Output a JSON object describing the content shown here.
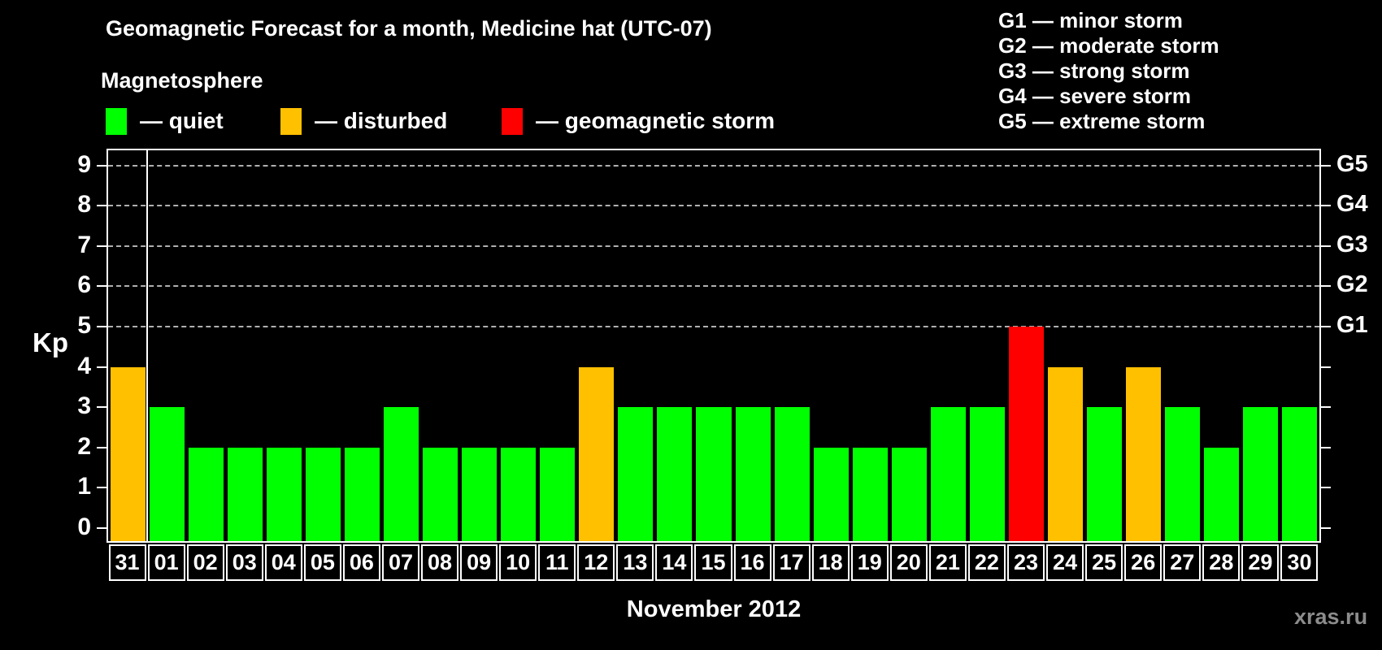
{
  "title": "Geomagnetic Forecast for a month, Medicine hat (UTC-07)",
  "subtitle": "Magnetosphere",
  "legend": {
    "items": [
      {
        "name": "quiet",
        "label": "— quiet",
        "color": "#00ff00"
      },
      {
        "name": "disturbed",
        "label": "— disturbed",
        "color": "#ffc000"
      },
      {
        "name": "storm",
        "label": "— geomagnetic storm",
        "color": "#ff0000"
      }
    ]
  },
  "storm_scale_legend": [
    "G1 — minor storm",
    "G2 — moderate storm",
    "G3 — strong storm",
    "G4 — severe storm",
    "G5 — extreme storm"
  ],
  "watermark": "xras.ru",
  "chart_data": {
    "type": "bar",
    "title": "Geomagnetic Forecast for a month, Medicine hat (UTC-07)",
    "ylabel": "Kp",
    "xlabel": "November 2012",
    "ylim": [
      0,
      9.4
    ],
    "yticks": [
      0,
      1,
      2,
      3,
      4,
      5,
      6,
      7,
      8,
      9
    ],
    "gridline_levels": [
      5,
      6,
      7,
      8,
      9
    ],
    "grid": "dashed horizontal lines at storm levels only",
    "legend_position": "top-left",
    "right_axis": [
      {
        "kp": 5,
        "label": "G1"
      },
      {
        "kp": 6,
        "label": "G2"
      },
      {
        "kp": 7,
        "label": "G3"
      },
      {
        "kp": 8,
        "label": "G4"
      },
      {
        "kp": 9,
        "label": "G5"
      }
    ],
    "month_separator_after_index": 0,
    "categories": [
      "31",
      "01",
      "02",
      "03",
      "04",
      "05",
      "06",
      "07",
      "08",
      "09",
      "10",
      "11",
      "12",
      "13",
      "14",
      "15",
      "16",
      "17",
      "18",
      "19",
      "20",
      "21",
      "22",
      "23",
      "24",
      "25",
      "26",
      "27",
      "28",
      "29",
      "30"
    ],
    "values": [
      4,
      3,
      2,
      2,
      2,
      2,
      2,
      3,
      2,
      2,
      2,
      2,
      4,
      3,
      3,
      3,
      3,
      3,
      2,
      2,
      2,
      3,
      3,
      5,
      4,
      3,
      4,
      3,
      2,
      3,
      3
    ],
    "statuses": [
      "disturbed",
      "quiet",
      "quiet",
      "quiet",
      "quiet",
      "quiet",
      "quiet",
      "quiet",
      "quiet",
      "quiet",
      "quiet",
      "quiet",
      "disturbed",
      "quiet",
      "quiet",
      "quiet",
      "quiet",
      "quiet",
      "quiet",
      "quiet",
      "quiet",
      "quiet",
      "quiet",
      "storm",
      "disturbed",
      "quiet",
      "disturbed",
      "quiet",
      "quiet",
      "quiet",
      "quiet"
    ],
    "status_rule": {
      "disturbed_min_kp": 4,
      "storm_min_kp": 5
    }
  }
}
